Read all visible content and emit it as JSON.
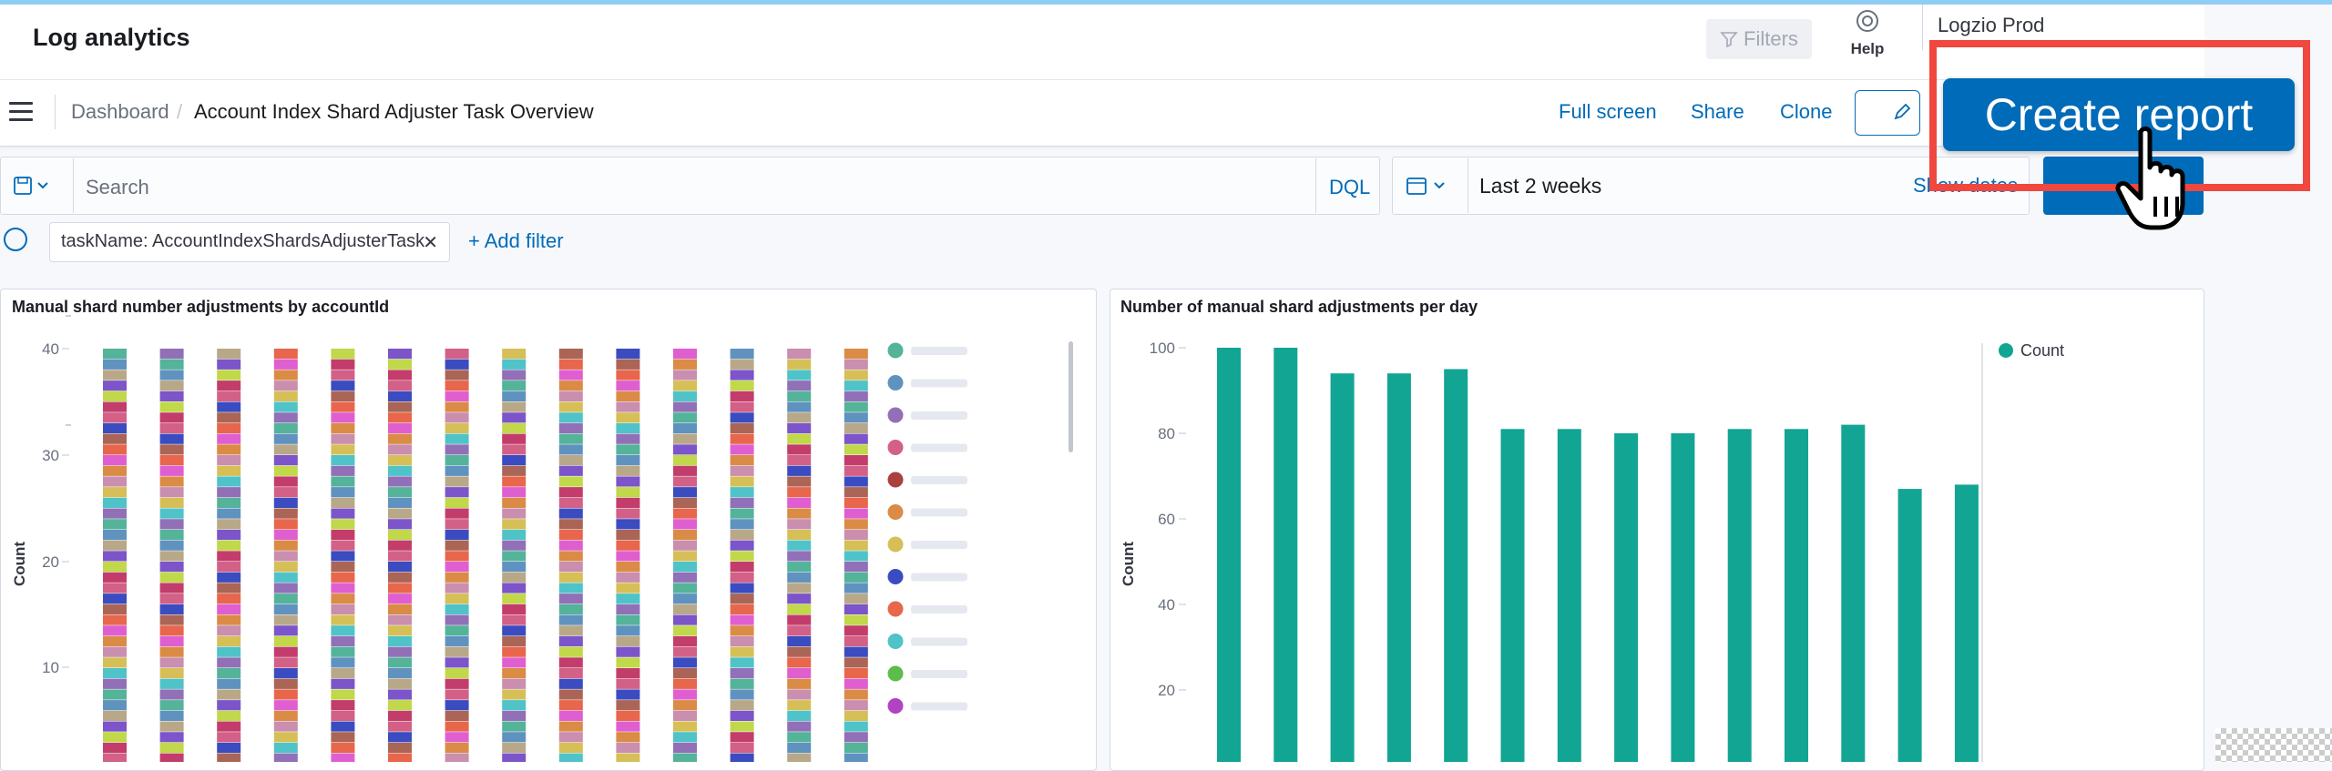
{
  "app": {
    "title": "Log analytics"
  },
  "header": {
    "filters_label": "Filters",
    "help_label": "Help",
    "account_name": "Logzio Prod"
  },
  "breadcrumb": {
    "root": "Dashboard",
    "separator": "/",
    "current": "Account Index Shard Adjuster Task Overview"
  },
  "nav_actions": {
    "full_screen": "Full screen",
    "share": "Share",
    "clone": "Clone"
  },
  "query_bar": {
    "search_placeholder": "Search",
    "language": "DQL",
    "date_range": "Last 2 weeks",
    "show_dates": "Show dates"
  },
  "filters": {
    "active": [
      "taskName: AccountIndexShardsAdjusterTask"
    ],
    "add_filter": "+ Add filter"
  },
  "overlay": {
    "create_report": "Create report"
  },
  "colors": {
    "accent": "#006bb8",
    "bar_teal": "#12a594",
    "highlight": "#f0473f",
    "palette": [
      "#54b399",
      "#6092c0",
      "#d36086",
      "#9170b8",
      "#ca8eae",
      "#d6bf57",
      "#b9a888",
      "#da8b45",
      "#aa6556",
      "#e7664c",
      "#4fc3c8",
      "#3b4cc0",
      "#c0d84a",
      "#c23d6b",
      "#e05fd0",
      "#7b55c9"
    ]
  },
  "charts": [
    {
      "title": "Manual shard number adjustments by accountId",
      "chart_data": {
        "type": "bar",
        "stacked": true,
        "ylabel": "Count",
        "yticks": [
          "40",
          "30",
          "20",
          "10"
        ],
        "ylim": [
          0,
          40
        ],
        "bar_count": 14,
        "legend_colors": [
          "#54b399",
          "#6092c0",
          "#9170b8",
          "#d36086",
          "#aa4040",
          "#da8b45",
          "#d6bf57",
          "#3b4cc0",
          "#e7664c",
          "#4fc3c8",
          "#5cbd4a",
          "#b043c2"
        ]
      }
    },
    {
      "title": "Number of manual shard adjustments per day",
      "chart_data": {
        "type": "bar",
        "ylabel": "Count",
        "yticks": [
          "100",
          "80",
          "60",
          "40",
          "20"
        ],
        "ylim": [
          0,
          100
        ],
        "legend": [
          "Count"
        ],
        "series": [
          {
            "name": "Count",
            "values": [
              100,
              100,
              94,
              94,
              95,
              81,
              81,
              80,
              80,
              81,
              81,
              82,
              67,
              68
            ]
          }
        ]
      }
    }
  ]
}
